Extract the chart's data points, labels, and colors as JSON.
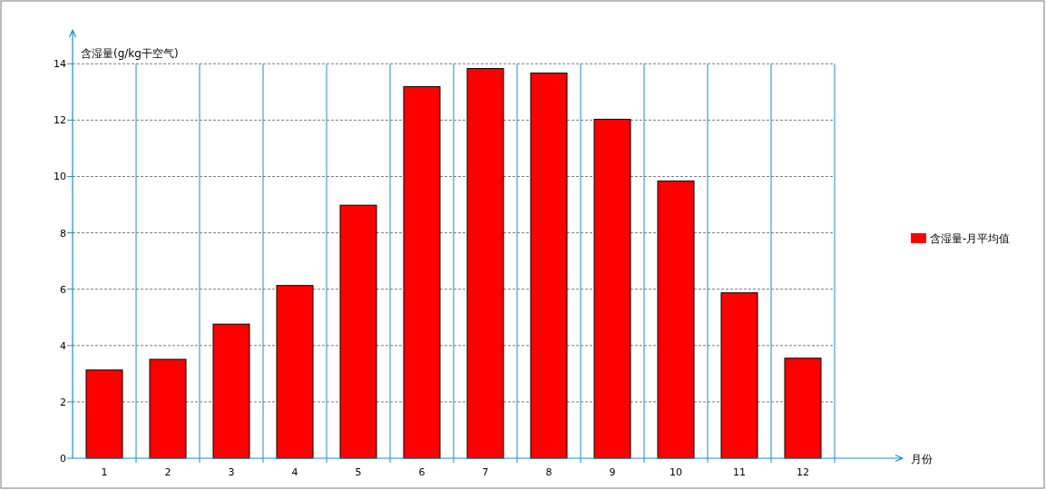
{
  "chart_data": {
    "type": "bar",
    "ylabel": "含湿量(g/kg干空气)",
    "annotations": [
      "月份"
    ],
    "categories": [
      "1",
      "2",
      "3",
      "4",
      "5",
      "6",
      "7",
      "8",
      "9",
      "10",
      "11",
      "12"
    ],
    "series": [
      {
        "name": "含湿量-月平均值",
        "color": "#ff0000",
        "values": [
          3.13,
          3.51,
          4.76,
          6.13,
          8.98,
          13.19,
          13.83,
          13.67,
          12.03,
          9.84,
          5.87,
          3.55
        ]
      }
    ],
    "ylim": [
      0,
      15.2
    ],
    "yticks": [
      0,
      2,
      4,
      6,
      8,
      10,
      12,
      14
    ],
    "grid": true,
    "legend": "right"
  }
}
